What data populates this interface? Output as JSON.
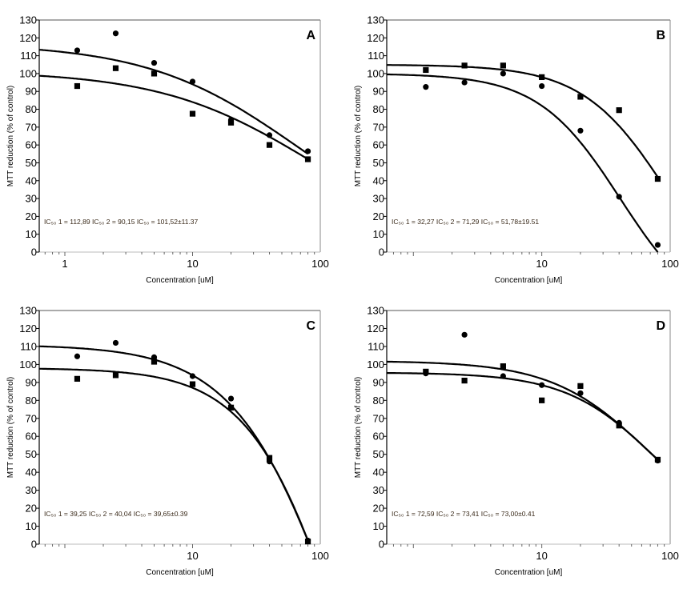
{
  "chart_data": [
    {
      "type": "scatter",
      "panel_label": "A",
      "xlabel": "Concentration [uM]",
      "ylabel": "MTT reduction (% of control)",
      "x_scale": "log",
      "xlim": [
        0.63,
        100
      ],
      "ylim": [
        0,
        130
      ],
      "x_ticks": [
        "1",
        "10",
        "100"
      ],
      "x_tick_values": [
        1,
        10,
        100
      ],
      "y_ticks": [
        "0",
        "10",
        "20",
        "30",
        "40",
        "50",
        "60",
        "70",
        "80",
        "90",
        "100",
        "110",
        "120",
        "130"
      ],
      "grid": false,
      "annotation": "IC₅₀ 1 =  112,89  IC₅₀ 2 =  90,15   IC₅₀ =  101,52±11.37",
      "x": [
        1.25,
        2.5,
        5,
        10,
        20,
        40,
        80
      ],
      "series": [
        {
          "marker": "circle",
          "values": [
            113,
            122.5,
            106,
            95.5,
            74,
            65.5,
            56.5
          ],
          "fit": {
            "top": 117,
            "bottom": 0,
            "ec": 68,
            "hill": 0.734
          }
        },
        {
          "marker": "square",
          "values": [
            93,
            103,
            100,
            77.5,
            72.5,
            60,
            52
          ],
          "fit": {
            "top": 101.5,
            "bottom": 0,
            "ec": 86,
            "hill": 0.73
          }
        }
      ]
    },
    {
      "type": "scatter",
      "panel_label": "B",
      "xlabel": "Concentration [uM]",
      "ylabel": "MTT reduction (% of control)",
      "x_scale": "log",
      "xlim": [
        0.62,
        100
      ],
      "ylim": [
        0,
        130
      ],
      "x_ticks": [
        "10",
        "100"
      ],
      "x_tick_values": [
        10,
        100
      ],
      "y_ticks": [
        "0",
        "10",
        "20",
        "30",
        "40",
        "50",
        "60",
        "70",
        "80",
        "90",
        "100",
        "110",
        "120",
        "130"
      ],
      "grid": false,
      "annotation": "IC₅₀ 1 = 32,27  IC₅₀ 2 = 71,29  IC₅₀ = 51,78±19.51",
      "x": [
        1.25,
        2.5,
        5,
        10,
        20,
        40,
        80
      ],
      "series": [
        {
          "marker": "circle",
          "values": [
            92.5,
            95,
            100,
            93,
            68,
            31,
            4
          ],
          "fit": {
            "top": 100,
            "bottom": -40,
            "ec": 40.8,
            "hill": 1.36
          }
        },
        {
          "marker": "square",
          "values": [
            102,
            104.5,
            104.5,
            98,
            87,
            79.5,
            41
          ],
          "fit": {
            "top": 105,
            "bottom": -40,
            "ec": 98,
            "hill": 1.306
          }
        }
      ]
    },
    {
      "type": "scatter",
      "panel_label": "C",
      "xlabel": "Concentration [uM]",
      "ylabel": "MTT reduction (% of control)",
      "x_scale": "log",
      "xlim": [
        0.63,
        100
      ],
      "ylim": [
        0,
        130
      ],
      "x_ticks": [
        "10",
        "100"
      ],
      "x_tick_values": [
        10,
        100
      ],
      "y_ticks": [
        "0",
        "10",
        "20",
        "30",
        "40",
        "50",
        "60",
        "70",
        "80",
        "90",
        "100",
        "110",
        "120",
        "130"
      ],
      "grid": false,
      "annotation": "IC₅₀ 1 = 39,25  IC₅₀ 2 = 40,04  IC₅₀ = 39,65±0.39",
      "x": [
        1.25,
        2.5,
        5,
        10,
        20,
        40,
        80
      ],
      "series": [
        {
          "marker": "circle",
          "values": [
            104.5,
            112,
            104,
            93.5,
            81,
            46,
            2
          ],
          "fit": {
            "top": 111,
            "bottom": -200,
            "ec": 142,
            "hill": 1.074
          }
        },
        {
          "marker": "square",
          "values": [
            92,
            94,
            101.5,
            89,
            76,
            48,
            1.5
          ],
          "fit": {
            "top": 98,
            "bottom": -200,
            "ec": 148,
            "hill": 1.21
          }
        }
      ]
    },
    {
      "type": "scatter",
      "panel_label": "D",
      "xlabel": "Concentration [uM]",
      "ylabel": "MTT reduction (% of control)",
      "x_scale": "log",
      "xlim": [
        0.62,
        100
      ],
      "ylim": [
        0,
        130
      ],
      "x_ticks": [
        "10",
        "100"
      ],
      "x_tick_values": [
        10,
        100
      ],
      "y_ticks": [
        "0",
        "10",
        "20",
        "30",
        "40",
        "50",
        "60",
        "70",
        "80",
        "90",
        "100",
        "110",
        "120",
        "130"
      ],
      "grid": false,
      "annotation": "IC₅₀ 1 = 72,59  IC₅₀ 2 = 73,41   IC₅₀ = 73,00±0.41",
      "x": [
        1.25,
        2.5,
        5,
        10,
        20,
        40,
        80
      ],
      "series": [
        {
          "marker": "circle",
          "values": [
            95,
            116.5,
            93.5,
            88.5,
            84,
            67.5,
            46.5
          ],
          "fit": {
            "top": 95.5,
            "bottom": 0,
            "ec": 78,
            "hill": 1.235
          }
        },
        {
          "marker": "square",
          "values": [
            96,
            91,
            99,
            80,
            88,
            66,
            47
          ],
          "fit": {
            "top": 102,
            "bottom": 0,
            "ec": 69.7,
            "hill": 1.143
          }
        }
      ]
    }
  ]
}
